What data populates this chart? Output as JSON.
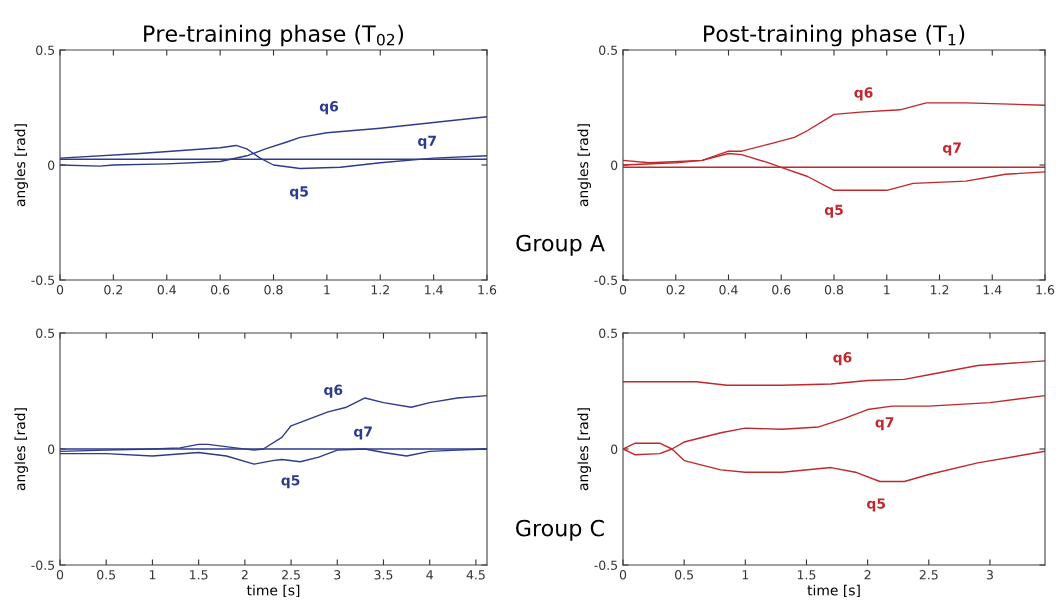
{
  "chart_data": [
    {
      "type": "line",
      "title": "Pre-training phase (T$_{02}$)",
      "ylabel": "angles [rad]",
      "xlim": [
        0,
        1.6
      ],
      "xticks": [
        0,
        0.2,
        0.4,
        0.6,
        0.8,
        1,
        1.2,
        1.4,
        1.6
      ],
      "ylim": [
        -0.5,
        0.5
      ],
      "yticks": [
        -0.5,
        0,
        0.5
      ],
      "grid": false,
      "series": [
        {
          "name": "q5",
          "color": "#2e3a8c",
          "x": [
            0,
            0.3,
            0.6,
            0.66,
            0.7,
            0.75,
            0.8,
            0.9,
            1.05,
            1.2,
            1.4,
            1.6
          ],
          "values": [
            0.03,
            0.05,
            0.075,
            0.085,
            0.07,
            0.03,
            0.0,
            -0.015,
            -0.01,
            0.01,
            0.03,
            0.04
          ]
        },
        {
          "name": "q6",
          "color": "#2e3a8c",
          "x": [
            0,
            0.15,
            0.2,
            0.4,
            0.6,
            0.7,
            0.77,
            0.85,
            0.9,
            1.0,
            1.2,
            1.4,
            1.6
          ],
          "values": [
            0.0,
            -0.005,
            0.0,
            0.005,
            0.015,
            0.04,
            0.07,
            0.1,
            0.12,
            0.14,
            0.16,
            0.185,
            0.21
          ]
        },
        {
          "name": "q7",
          "color": "#2e3a8c",
          "x": [
            0,
            1.6
          ],
          "values": [
            0.025,
            0.025
          ]
        }
      ]
    },
    {
      "type": "line",
      "title": "Post-training phase (T$_{1}$)",
      "ylabel": "angles [rad]",
      "xlim": [
        0,
        1.6
      ],
      "xticks": [
        0,
        0.2,
        0.4,
        0.6,
        0.8,
        1,
        1.2,
        1.4,
        1.6
      ],
      "ylim": [
        -0.5,
        0.5
      ],
      "yticks": [
        -0.5,
        0,
        0.5
      ],
      "grid": false,
      "series": [
        {
          "name": "q5",
          "color": "#c0282d",
          "x": [
            0,
            0.1,
            0.3,
            0.4,
            0.45,
            0.55,
            0.6,
            0.7,
            0.8,
            1.0,
            1.1,
            1.3,
            1.45,
            1.6
          ],
          "values": [
            0.02,
            0.01,
            0.02,
            0.05,
            0.045,
            0.01,
            -0.01,
            -0.05,
            -0.11,
            -0.11,
            -0.08,
            -0.07,
            -0.04,
            -0.03
          ]
        },
        {
          "name": "q6",
          "color": "#c0282d",
          "x": [
            0,
            0.2,
            0.3,
            0.4,
            0.45,
            0.55,
            0.65,
            0.7,
            0.8,
            0.9,
            1.05,
            1.15,
            1.3,
            1.6
          ],
          "values": [
            0.0,
            0.01,
            0.02,
            0.06,
            0.06,
            0.09,
            0.12,
            0.15,
            0.22,
            0.23,
            0.24,
            0.27,
            0.27,
            0.26
          ]
        },
        {
          "name": "q7",
          "color": "#c0282d",
          "x": [
            0,
            1.6
          ],
          "values": [
            -0.01,
            -0.01
          ]
        }
      ],
      "annotations": [
        "Group A"
      ]
    },
    {
      "type": "line",
      "xlabel": "time [s]",
      "ylabel": "angles [rad]",
      "xlim": [
        0,
        4.62
      ],
      "xticks": [
        0,
        0.5,
        1,
        1.5,
        2,
        2.5,
        3,
        3.5,
        4,
        4.5
      ],
      "ylim": [
        -0.5,
        0.5
      ],
      "yticks": [
        -0.5,
        0,
        0.5
      ],
      "grid": false,
      "series": [
        {
          "name": "q5",
          "color": "#2e3a8c",
          "x": [
            0,
            0.5,
            1,
            1.5,
            1.8,
            2.1,
            2.3,
            2.4,
            2.6,
            2.8,
            3.0,
            3.3,
            3.5,
            3.75,
            4.0,
            4.3,
            4.62
          ],
          "values": [
            -0.02,
            -0.02,
            -0.03,
            -0.015,
            -0.03,
            -0.065,
            -0.05,
            -0.045,
            -0.055,
            -0.035,
            -0.005,
            0.0,
            -0.015,
            -0.03,
            -0.01,
            -0.005,
            0.0
          ]
        },
        {
          "name": "q6",
          "color": "#2e3a8c",
          "x": [
            0,
            0.5,
            1,
            1.3,
            1.5,
            1.6,
            1.9,
            2.1,
            2.2,
            2.4,
            2.5,
            2.7,
            2.9,
            3.1,
            3.3,
            3.5,
            3.8,
            4.0,
            4.3,
            4.62
          ],
          "values": [
            -0.01,
            -0.005,
            0.0,
            0.005,
            0.02,
            0.02,
            0.005,
            -0.005,
            0.0,
            0.05,
            0.1,
            0.13,
            0.16,
            0.18,
            0.22,
            0.2,
            0.18,
            0.2,
            0.22,
            0.23
          ]
        },
        {
          "name": "q7",
          "color": "#2e3a8c",
          "x": [
            0,
            4.62
          ],
          "values": [
            0.0,
            0.0
          ]
        }
      ]
    },
    {
      "type": "line",
      "xlabel": "time [s]",
      "ylabel": "angles [rad]",
      "xlim": [
        0,
        3.45
      ],
      "xticks": [
        0,
        0.5,
        1,
        1.5,
        2,
        2.5,
        3
      ],
      "ylim": [
        -0.5,
        0.5
      ],
      "yticks": [
        -0.5,
        0,
        0.5
      ],
      "grid": false,
      "series": [
        {
          "name": "q5",
          "color": "#c0282d",
          "x": [
            0,
            0.1,
            0.3,
            0.4,
            0.5,
            0.8,
            1.0,
            1.3,
            1.7,
            1.9,
            2.1,
            2.3,
            2.5,
            2.9,
            3.45
          ],
          "values": [
            0.0,
            0.025,
            0.025,
            0.0,
            -0.05,
            -0.09,
            -0.1,
            -0.1,
            -0.08,
            -0.1,
            -0.14,
            -0.14,
            -0.11,
            -0.06,
            -0.01
          ]
        },
        {
          "name": "q6",
          "color": "#c0282d",
          "x": [
            0,
            0.6,
            0.85,
            1.3,
            1.7,
            2.0,
            2.3,
            2.5,
            2.9,
            3.45
          ],
          "values": [
            0.29,
            0.29,
            0.275,
            0.275,
            0.28,
            0.295,
            0.3,
            0.32,
            0.36,
            0.38
          ]
        },
        {
          "name": "q7",
          "color": "#c0282d",
          "x": [
            0,
            0.1,
            0.3,
            0.4,
            0.5,
            0.8,
            1.0,
            1.3,
            1.6,
            1.8,
            2.0,
            2.2,
            2.5,
            3.0,
            3.45
          ],
          "values": [
            0.0,
            -0.025,
            -0.02,
            0.0,
            0.03,
            0.07,
            0.09,
            0.085,
            0.095,
            0.13,
            0.17,
            0.185,
            0.185,
            0.2,
            0.23
          ]
        }
      ],
      "annotations": [
        "Group C"
      ]
    }
  ]
}
